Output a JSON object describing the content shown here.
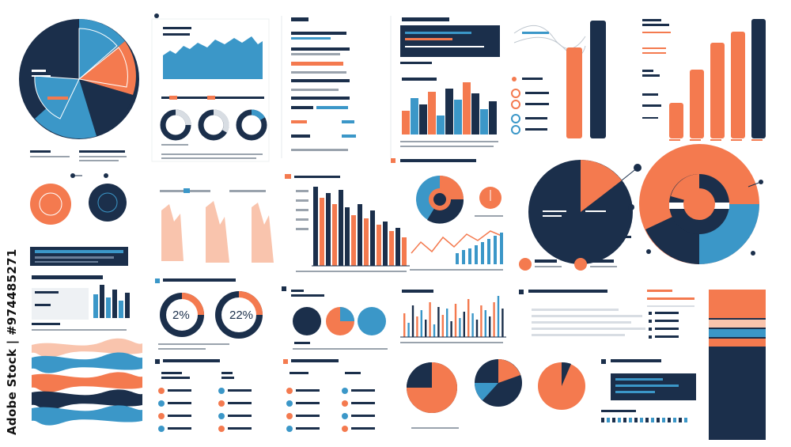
{
  "colors": {
    "navy": "#1b2f4b",
    "orange": "#f47a4f",
    "blue": "#3b97c8",
    "grey": "#d8dde3",
    "light_orange": "#f9c4ad"
  },
  "watermark": {
    "text": "Adobe Stock | #974485271"
  },
  "donut_a": {
    "label": "2%"
  },
  "donut_b": {
    "label": "22%"
  }
}
